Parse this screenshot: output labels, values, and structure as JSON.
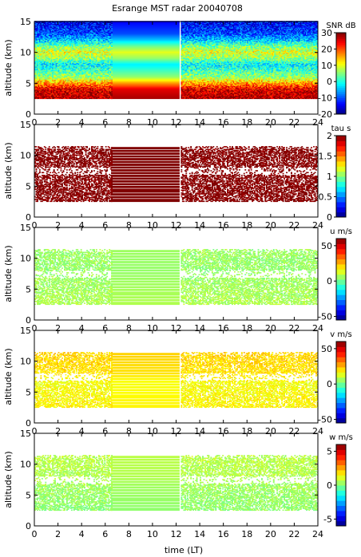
{
  "figure": {
    "title": "Esrange MST radar 20040708",
    "xlabel": "time (LT)"
  },
  "chart_data": [
    {
      "type": "heatmap",
      "panel": "snr",
      "ylabel": "altitude (km)",
      "xlim": [
        0,
        24
      ],
      "ylim": [
        0,
        15
      ],
      "xticks": [
        "0",
        "2",
        "4",
        "6",
        "8",
        "10",
        "12",
        "14",
        "16",
        "18",
        "20",
        "22",
        "24"
      ],
      "yticks": [
        "0",
        "5",
        "10",
        "15"
      ],
      "colorbar": {
        "label": "SNR dB",
        "range": [
          -20,
          30
        ],
        "ticks": [
          "-20",
          "-10",
          "0",
          "10",
          "20",
          "30"
        ]
      },
      "data_extent": {
        "altitude_km": [
          2.5,
          15
        ],
        "interpolated_gap_hours": [
          6.5,
          12.3
        ]
      },
      "profile": [
        [
          2.5,
          28
        ],
        [
          4,
          25
        ],
        [
          5,
          16
        ],
        [
          6,
          6
        ],
        [
          7,
          2
        ],
        [
          8,
          -2
        ],
        [
          9,
          6
        ],
        [
          10,
          10
        ],
        [
          11,
          4
        ],
        [
          12,
          -4
        ],
        [
          13,
          -10
        ],
        [
          15,
          -14
        ]
      ]
    },
    {
      "type": "heatmap",
      "panel": "tau",
      "ylabel": "altitude (km)",
      "xlim": [
        0,
        24
      ],
      "ylim": [
        0,
        15
      ],
      "xticks": [
        "0",
        "2",
        "4",
        "6",
        "8",
        "10",
        "12",
        "14",
        "16",
        "18",
        "20",
        "22",
        "24"
      ],
      "yticks": [
        "0",
        "5",
        "10",
        "15"
      ],
      "colorbar": {
        "label": "tau s",
        "range": [
          0,
          2
        ],
        "ticks": [
          "0",
          "0.5",
          "1",
          "1.5",
          "2"
        ]
      },
      "data_extent": {
        "altitude_km": [
          2.5,
          11.5
        ],
        "interpolated_gap_hours": [
          6.5,
          12.3
        ]
      },
      "profile": [
        [
          2.5,
          2
        ],
        [
          6.5,
          2
        ],
        [
          8,
          2
        ],
        [
          11.5,
          2
        ]
      ]
    },
    {
      "type": "heatmap",
      "panel": "u",
      "ylabel": "altitude (km)",
      "xlim": [
        0,
        24
      ],
      "ylim": [
        0,
        15
      ],
      "xticks": [
        "0",
        "2",
        "4",
        "6",
        "8",
        "10",
        "12",
        "14",
        "16",
        "18",
        "20",
        "22",
        "24"
      ],
      "yticks": [
        "0",
        "5",
        "10",
        "15"
      ],
      "colorbar": {
        "label": "u m/s",
        "range": [
          -55,
          60
        ],
        "ticks": [
          "-50",
          "0",
          "50"
        ]
      },
      "data_extent": {
        "altitude_km": [
          2.5,
          11.5
        ],
        "interpolated_gap_hours": [
          6.5,
          12.3
        ]
      },
      "profile": [
        [
          2.5,
          8
        ],
        [
          6.5,
          6
        ],
        [
          8,
          5
        ],
        [
          11.5,
          6
        ]
      ]
    },
    {
      "type": "heatmap",
      "panel": "v",
      "ylabel": "altitude (km)",
      "xlim": [
        0,
        24
      ],
      "ylim": [
        0,
        15
      ],
      "xticks": [
        "0",
        "2",
        "4",
        "6",
        "8",
        "10",
        "12",
        "14",
        "16",
        "18",
        "20",
        "22",
        "24"
      ],
      "yticks": [
        "0",
        "5",
        "10",
        "15"
      ],
      "colorbar": {
        "label": "v m/s",
        "range": [
          -55,
          60
        ],
        "ticks": [
          "-50",
          "0",
          "50"
        ]
      },
      "data_extent": {
        "altitude_km": [
          2.5,
          11.5
        ],
        "interpolated_gap_hours": [
          6.5,
          12.3
        ]
      },
      "profile": [
        [
          2.5,
          18
        ],
        [
          6.5,
          16
        ],
        [
          8,
          20
        ],
        [
          11.5,
          22
        ]
      ]
    },
    {
      "type": "heatmap",
      "panel": "w",
      "ylabel": "altitude (km)",
      "xlim": [
        0,
        24
      ],
      "ylim": [
        0,
        15
      ],
      "xticks": [
        "0",
        "2",
        "4",
        "6",
        "8",
        "10",
        "12",
        "14",
        "16",
        "18",
        "20",
        "22",
        "24"
      ],
      "yticks": [
        "0",
        "5",
        "10",
        "15"
      ],
      "colorbar": {
        "label": "w m/s",
        "range": [
          -6,
          6
        ],
        "ticks": [
          "-5",
          "0",
          "5"
        ]
      },
      "data_extent": {
        "altitude_km": [
          2.5,
          11.5
        ],
        "interpolated_gap_hours": [
          6.5,
          12.3
        ]
      },
      "profile": [
        [
          2.5,
          0.2
        ],
        [
          6.5,
          0.4
        ],
        [
          8,
          0.6
        ],
        [
          11.5,
          0.7
        ]
      ]
    }
  ]
}
